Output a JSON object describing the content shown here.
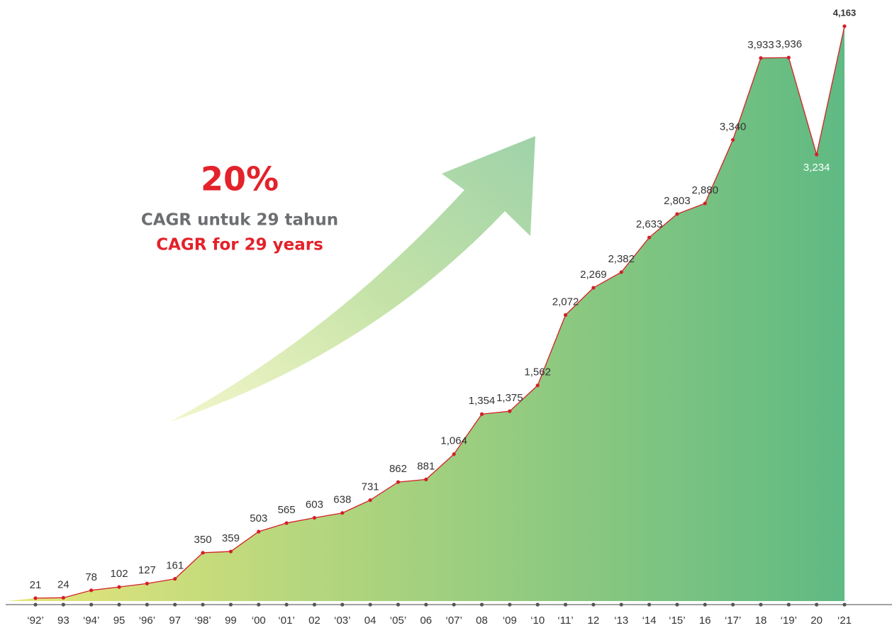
{
  "chart_data": {
    "type": "area",
    "categories": [
      "‘92’",
      "93",
      "‘94’",
      "95",
      "‘96’",
      "97",
      "‘98’",
      "99",
      "‘00",
      "‘01’",
      "02",
      "‘03’",
      "04",
      "‘05’",
      "06",
      "‘07’",
      "08",
      "‘09",
      "‘10",
      "‘11’",
      "12",
      "‘13",
      "‘14",
      "‘15’",
      "16",
      "‘17’",
      "18",
      "‘19’",
      "20",
      "‘21"
    ],
    "values": [
      21,
      24,
      78,
      102,
      127,
      161,
      350,
      359,
      503,
      565,
      603,
      638,
      731,
      862,
      881,
      1064,
      1354,
      1375,
      1562,
      2072,
      2269,
      2382,
      2633,
      2803,
      2880,
      3340,
      3933,
      3936,
      3234,
      4163
    ],
    "value_labels": [
      "21",
      "24",
      "78",
      "102",
      "127",
      "161",
      "350",
      "359",
      "503",
      "565",
      "603",
      "638",
      "731",
      "862",
      "881",
      "1,064",
      "1,354",
      "1,375",
      "1,562",
      "2,072",
      "2,269",
      "2,382",
      "2,633",
      "2,803",
      "2,880",
      "3,340",
      "3,933",
      "3,936",
      "3,234",
      "4,163"
    ],
    "color": "#d42027",
    "fill_colors": [
      "#e6e67a",
      "#5fba83"
    ],
    "annotations": [
      "20%",
      "CAGR untuk 29 tahun",
      "CAGR for 29 years"
    ]
  }
}
